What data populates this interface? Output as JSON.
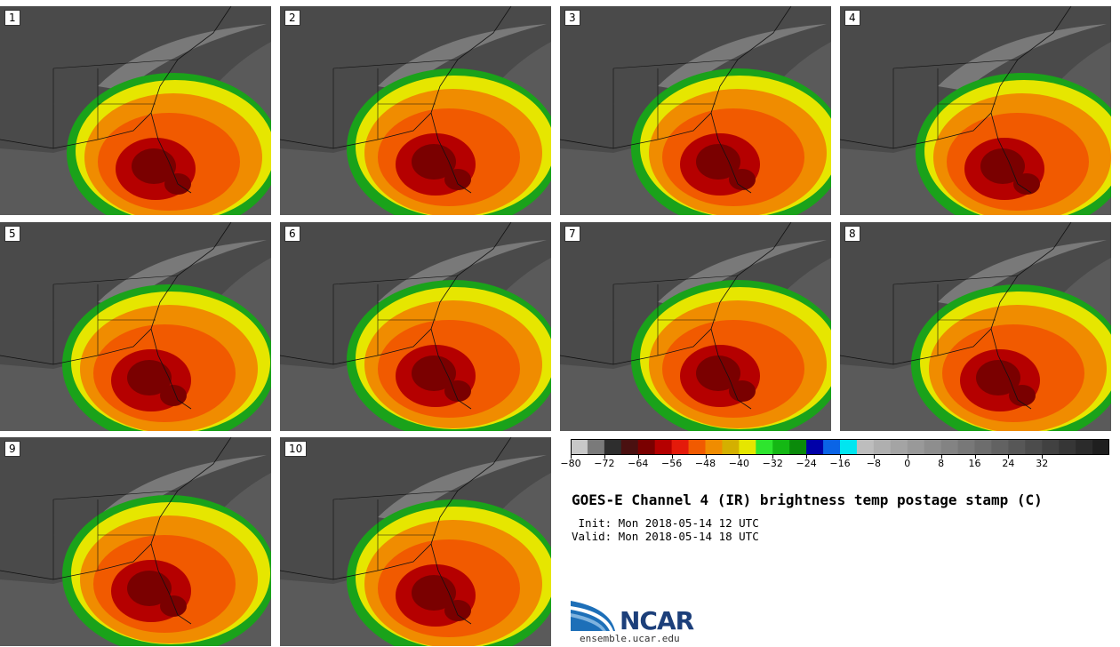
{
  "panels": [
    {
      "label": "1"
    },
    {
      "label": "2"
    },
    {
      "label": "3"
    },
    {
      "label": "4"
    },
    {
      "label": "5"
    },
    {
      "label": "6"
    },
    {
      "label": "7"
    },
    {
      "label": "8"
    },
    {
      "label": "9"
    },
    {
      "label": "10"
    }
  ],
  "colorbar": {
    "colors": [
      "#c8c8c8",
      "#7a7a7a",
      "#2e2e2e",
      "#4a1010",
      "#7a0000",
      "#b50000",
      "#e41a0a",
      "#f15a00",
      "#f08c00",
      "#d4b000",
      "#e6e600",
      "#2ee52e",
      "#14b814",
      "#0a8a0a",
      "#0000a8",
      "#0a64e6",
      "#00e6f0",
      "#bdbdbd",
      "#afafaf",
      "#a4a4a4",
      "#999999",
      "#8e8e8e",
      "#838383",
      "#787878",
      "#6d6d6d",
      "#626262",
      "#575757",
      "#4c4c4c",
      "#414141",
      "#363636",
      "#2b2b2b",
      "#1f1f1f"
    ],
    "tick_labels": [
      "−80",
      "−72",
      "−64",
      "−56",
      "−48",
      "−40",
      "−32",
      "−24",
      "−16",
      "−8",
      "0",
      "8",
      "16",
      "24",
      "32"
    ]
  },
  "title": "GOES-E Channel 4 (IR) brightness temp postage stamp (C)",
  "init": " Init: Mon 2018-05-14 12 UTC",
  "valid": "Valid: Mon 2018-05-14 18 UTC",
  "logo": {
    "name": "NCAR",
    "url": "ensemble.ucar.edu"
  }
}
